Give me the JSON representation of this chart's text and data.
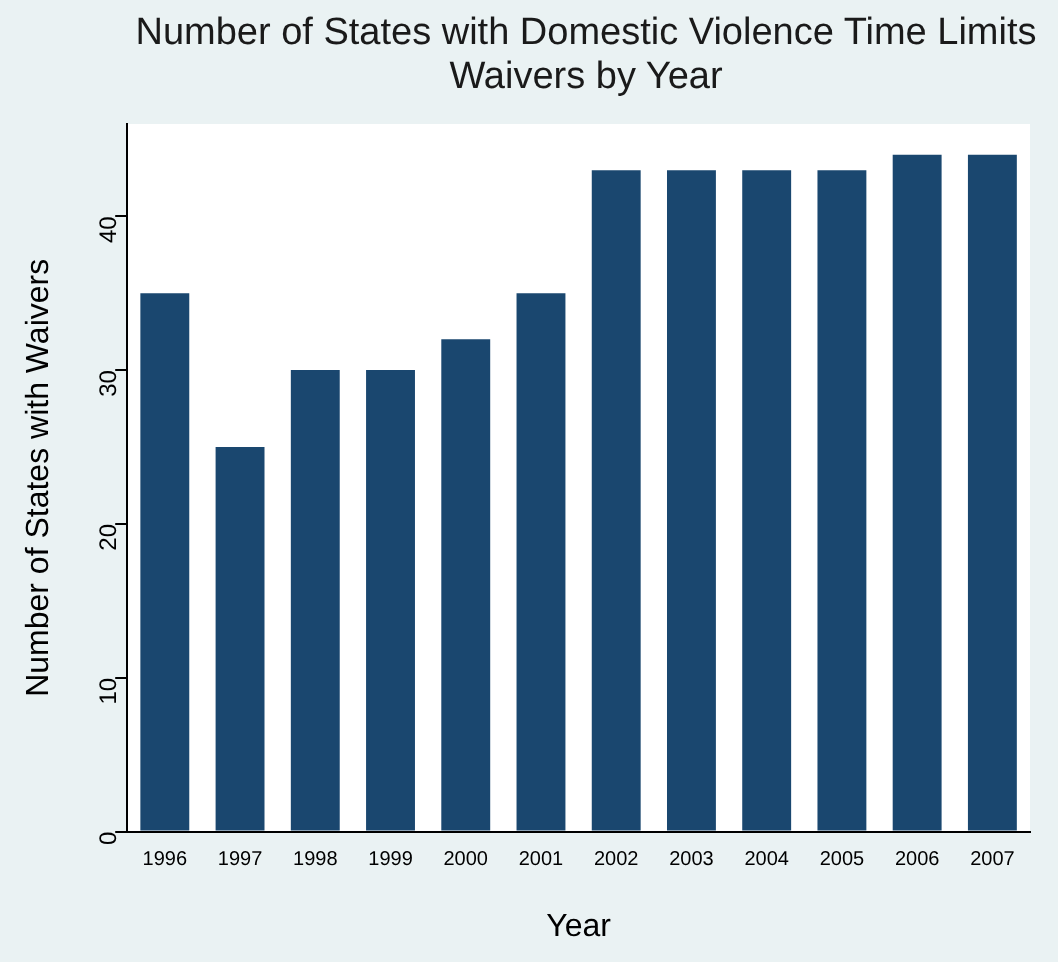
{
  "chart_data": {
    "type": "bar",
    "title": "Number of States with Domestic Violence Time Limits Waivers by Year",
    "xlabel": "Year",
    "ylabel": "Number of States with Waivers",
    "categories": [
      "1996",
      "1997",
      "1998",
      "1999",
      "2000",
      "2001",
      "2002",
      "2003",
      "2004",
      "2005",
      "2006",
      "2007"
    ],
    "values": [
      35,
      25,
      30,
      30,
      32,
      35,
      43,
      43,
      43,
      43,
      44,
      44
    ],
    "color": "#1a476f",
    "ylim": [
      0,
      46
    ],
    "yticks": [
      0,
      10,
      20,
      30,
      40
    ],
    "grid": false,
    "legend": false
  }
}
